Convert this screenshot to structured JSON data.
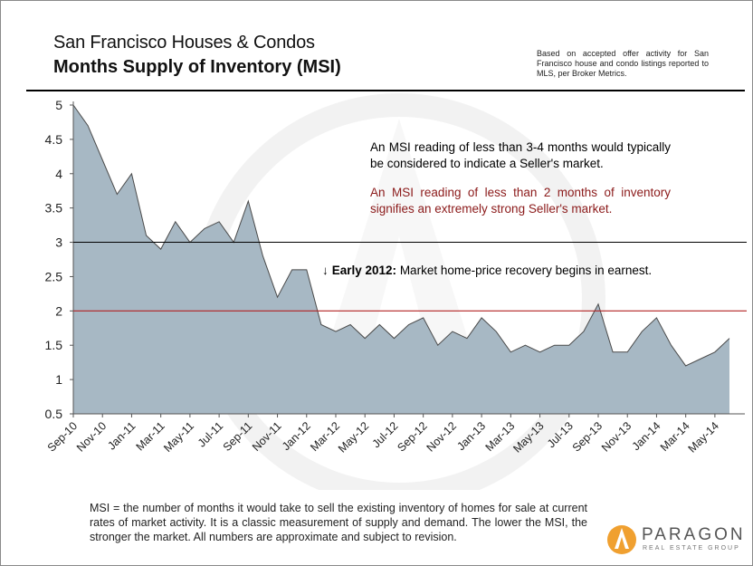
{
  "header": {
    "title_line1": "San Francisco Houses & Condos",
    "title_line2": "Months Supply of Inventory (MSI)",
    "source_note": "Based on accepted offer activity for San Francisco house and condo listings reported to MLS, per Broker Metrics."
  },
  "annotations": {
    "seller_market": "An MSI reading of less than 3-4 months would typically be considered to indicate a Seller's market.",
    "strong_seller_market": "An MSI reading of less than 2 months of inventory signifies an extremely strong Seller's market.",
    "recovery_arrow": "↓",
    "recovery_label": "Early 2012:",
    "recovery_text": " Market home-price recovery begins in earnest."
  },
  "footnote": "MSI = the number of months it would take to sell the existing inventory of homes for sale at current rates of market activity.  It is a classic measurement of supply and demand. The lower the MSI, the stronger the market. All numbers are approximate and subject to revision.",
  "logo": {
    "name": "PARAGON",
    "subtitle": "REAL ESTATE GROUP",
    "icon": "paragon-flame-icon"
  },
  "colors": {
    "area_fill": "#a7b8c4",
    "area_stroke": "#4a4a4a",
    "threshold_3": "#000000",
    "threshold_2": "#b22222",
    "strong_text": "#8b1a1a",
    "logo_orange": "#f0a030"
  },
  "chart_data": {
    "type": "area",
    "ylim": [
      0.5,
      5
    ],
    "yticks": [
      "0.5",
      "1",
      "1.5",
      "2",
      "2.5",
      "3",
      "3.5",
      "4",
      "4.5",
      "5"
    ],
    "x_tick_labels": [
      "Sep-10",
      "Nov-10",
      "Jan-11",
      "Mar-11",
      "May-11",
      "Jul-11",
      "Sep-11",
      "Nov-11",
      "Jan-12",
      "Mar-12",
      "May-12",
      "Jul-12",
      "Sep-12",
      "Nov-12",
      "Jan-13",
      "Mar-13",
      "May-13",
      "Jul-13",
      "Sep-13",
      "Nov-13",
      "Jan-14",
      "Mar-14",
      "May-14"
    ],
    "x": [
      "Sep-10",
      "Oct-10",
      "Nov-10",
      "Dec-10",
      "Jan-11",
      "Feb-11",
      "Mar-11",
      "Apr-11",
      "May-11",
      "Jun-11",
      "Jul-11",
      "Aug-11",
      "Sep-11",
      "Oct-11",
      "Nov-11",
      "Dec-11",
      "Jan-12",
      "Feb-12",
      "Mar-12",
      "Apr-12",
      "May-12",
      "Jun-12",
      "Jul-12",
      "Aug-12",
      "Sep-12",
      "Oct-12",
      "Nov-12",
      "Dec-12",
      "Jan-13",
      "Feb-13",
      "Mar-13",
      "Apr-13",
      "May-13",
      "Jun-13",
      "Jul-13",
      "Aug-13",
      "Sep-13",
      "Oct-13",
      "Nov-13",
      "Dec-13",
      "Jan-14",
      "Feb-14",
      "Mar-14",
      "Apr-14",
      "May-14",
      "Jun-14"
    ],
    "values": [
      5.0,
      4.7,
      4.2,
      3.7,
      4.0,
      3.1,
      2.9,
      3.3,
      3.0,
      3.2,
      3.3,
      3.0,
      3.6,
      2.8,
      2.2,
      2.6,
      2.6,
      1.8,
      1.7,
      1.8,
      1.6,
      1.8,
      1.6,
      1.8,
      1.9,
      1.5,
      1.7,
      1.6,
      1.9,
      1.7,
      1.4,
      1.5,
      1.4,
      1.5,
      1.5,
      1.7,
      2.1,
      1.4,
      1.4,
      1.7,
      1.9,
      1.5,
      1.2,
      1.3,
      1.4,
      1.6
    ],
    "reference_lines": [
      3,
      2
    ],
    "grid": false,
    "legend": "none"
  }
}
